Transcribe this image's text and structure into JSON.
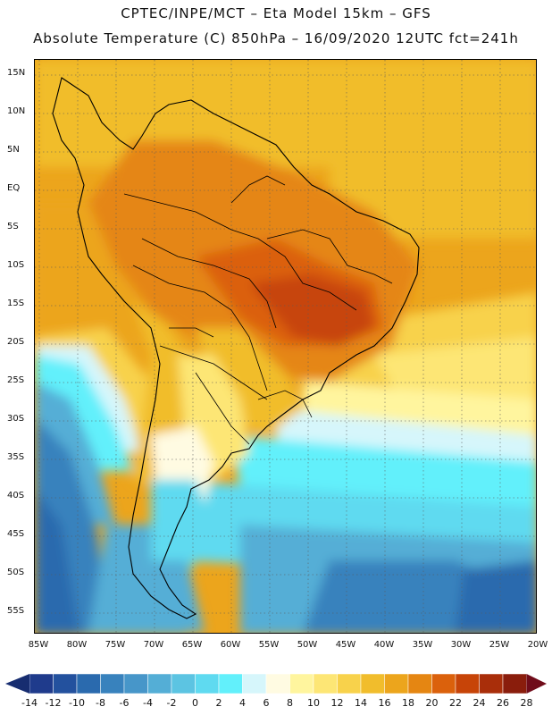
{
  "header": {
    "line1": "CPTEC/INPE/MCT –  Eta Model 15km – GFS",
    "line2": "Absolute Temperature (C) 850hPa – 16/09/2020 12UTC fct=241h"
  },
  "axes": {
    "lat_labels": [
      "15N",
      "10N",
      "5N",
      "EQ",
      "5S",
      "10S",
      "15S",
      "20S",
      "25S",
      "30S",
      "35S",
      "40S",
      "45S",
      "50S",
      "55S"
    ],
    "lon_labels": [
      "85W",
      "80W",
      "75W",
      "70W",
      "65W",
      "60W",
      "55W",
      "50W",
      "45W",
      "40W",
      "35W",
      "30W",
      "25W",
      "20W"
    ]
  },
  "map": {
    "region": "South America",
    "lat_range": [
      17,
      -58
    ],
    "lon_range": [
      -86,
      -20
    ],
    "grid": "dashed every 5 degrees"
  },
  "colorbar": {
    "labels": [
      "-14",
      "-12",
      "-10",
      "-8",
      "-6",
      "-4",
      "-2",
      "0",
      "2",
      "4",
      "6",
      "8",
      "10",
      "12",
      "14",
      "16",
      "18",
      "20",
      "22",
      "24",
      "26",
      "28"
    ],
    "colors": [
      "#1f3b8c",
      "#23519e",
      "#2a6aae",
      "#3882bd",
      "#4796c9",
      "#54aed6",
      "#5cc4e2",
      "#5fdaf0",
      "#62f0fb",
      "#d6f6fb",
      "#fffbe2",
      "#fff59e",
      "#fde675",
      "#f8d24b",
      "#f1bd2c",
      "#eca51c",
      "#e58612",
      "#db610c",
      "#c74408",
      "#a92e0a",
      "#8a1d0c"
    ],
    "low_extend_color": "#172d70",
    "high_extend_color": "#700c1a"
  }
}
